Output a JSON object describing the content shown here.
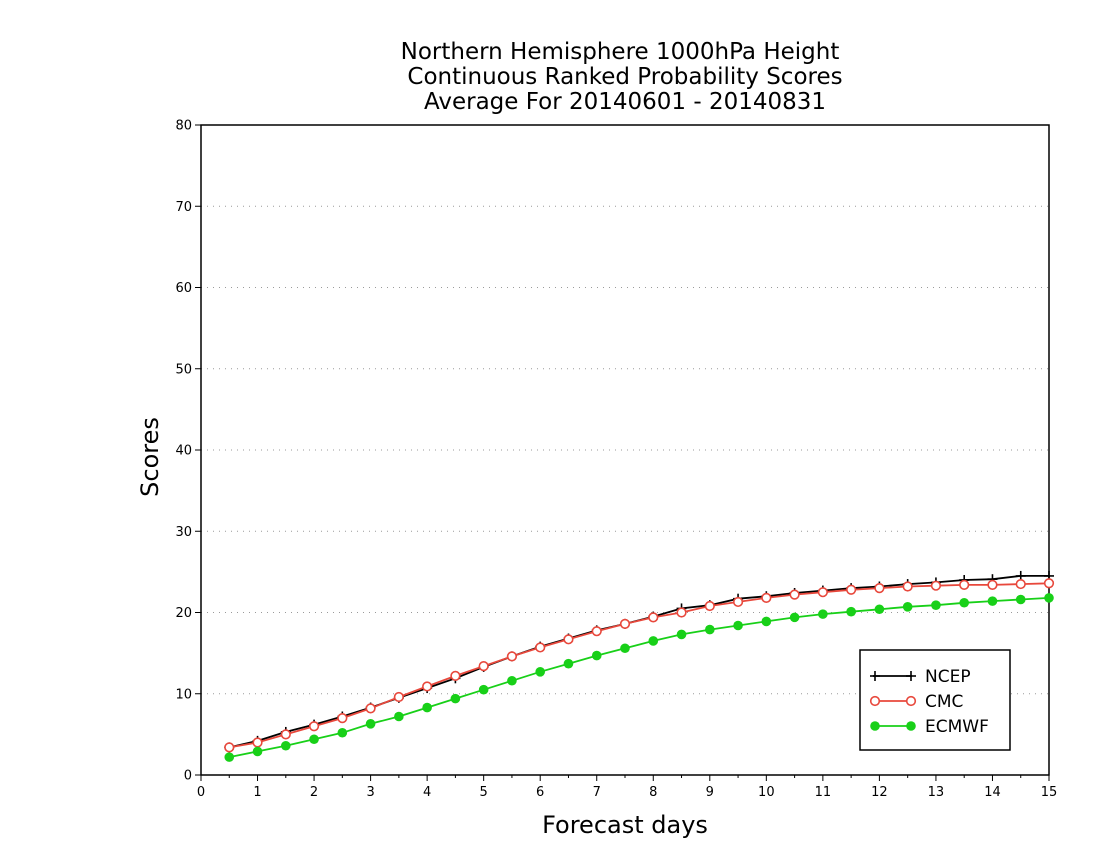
{
  "chart_data": {
    "type": "line",
    "title": [
      "Northern Hemisphere 1000hPa Height",
      "Continuous Ranked Probability Scores",
      "Average For 20140601 - 20140831"
    ],
    "xlabel": "Forecast days",
    "ylabel": "Scores",
    "xlim": [
      0,
      15
    ],
    "ylim": [
      0,
      80
    ],
    "xticks": [
      "0",
      "1",
      "2",
      "3",
      "4",
      "5",
      "6",
      "7",
      "8",
      "9",
      "10",
      "11",
      "12",
      "13",
      "14",
      "15"
    ],
    "yticks": [
      "0",
      "10",
      "20",
      "30",
      "40",
      "50",
      "60",
      "70",
      "80"
    ],
    "grid": "horizontal-dotted",
    "legend_position": "bottom-right",
    "x": [
      0.5,
      1,
      1.5,
      2,
      2.5,
      3,
      3.5,
      4,
      4.5,
      5,
      5.5,
      6,
      6.5,
      7,
      7.5,
      8,
      8.5,
      9,
      9.5,
      10,
      10.5,
      11,
      11.5,
      12,
      12.5,
      13,
      13.5,
      14,
      14.5,
      15
    ],
    "series": [
      {
        "name": "NCEP",
        "color": "#000000",
        "marker": "plus",
        "values": [
          3.4,
          4.2,
          5.3,
          6.2,
          7.2,
          8.3,
          9.5,
          10.7,
          11.9,
          13.3,
          14.6,
          15.8,
          16.8,
          17.8,
          18.6,
          19.5,
          20.5,
          20.9,
          21.7,
          22.0,
          22.4,
          22.7,
          23.0,
          23.2,
          23.5,
          23.7,
          24.0,
          24.1,
          24.5,
          24.5
        ]
      },
      {
        "name": "CMC",
        "color": "#e8483c",
        "marker": "open-circle",
        "values": [
          3.4,
          4.0,
          5.0,
          6.0,
          7.0,
          8.2,
          9.6,
          10.9,
          12.2,
          13.4,
          14.6,
          15.7,
          16.7,
          17.7,
          18.6,
          19.4,
          20.0,
          20.8,
          21.3,
          21.8,
          22.2,
          22.5,
          22.8,
          23.0,
          23.2,
          23.3,
          23.4,
          23.4,
          23.5,
          23.6
        ]
      },
      {
        "name": "ECMWF",
        "color": "#18d018",
        "marker": "filled-circle",
        "values": [
          2.2,
          2.9,
          3.6,
          4.4,
          5.2,
          6.3,
          7.2,
          8.3,
          9.4,
          10.5,
          11.6,
          12.7,
          13.7,
          14.7,
          15.6,
          16.5,
          17.3,
          17.9,
          18.4,
          18.9,
          19.4,
          19.8,
          20.1,
          20.4,
          20.7,
          20.9,
          21.2,
          21.4,
          21.6,
          21.8
        ]
      }
    ]
  }
}
